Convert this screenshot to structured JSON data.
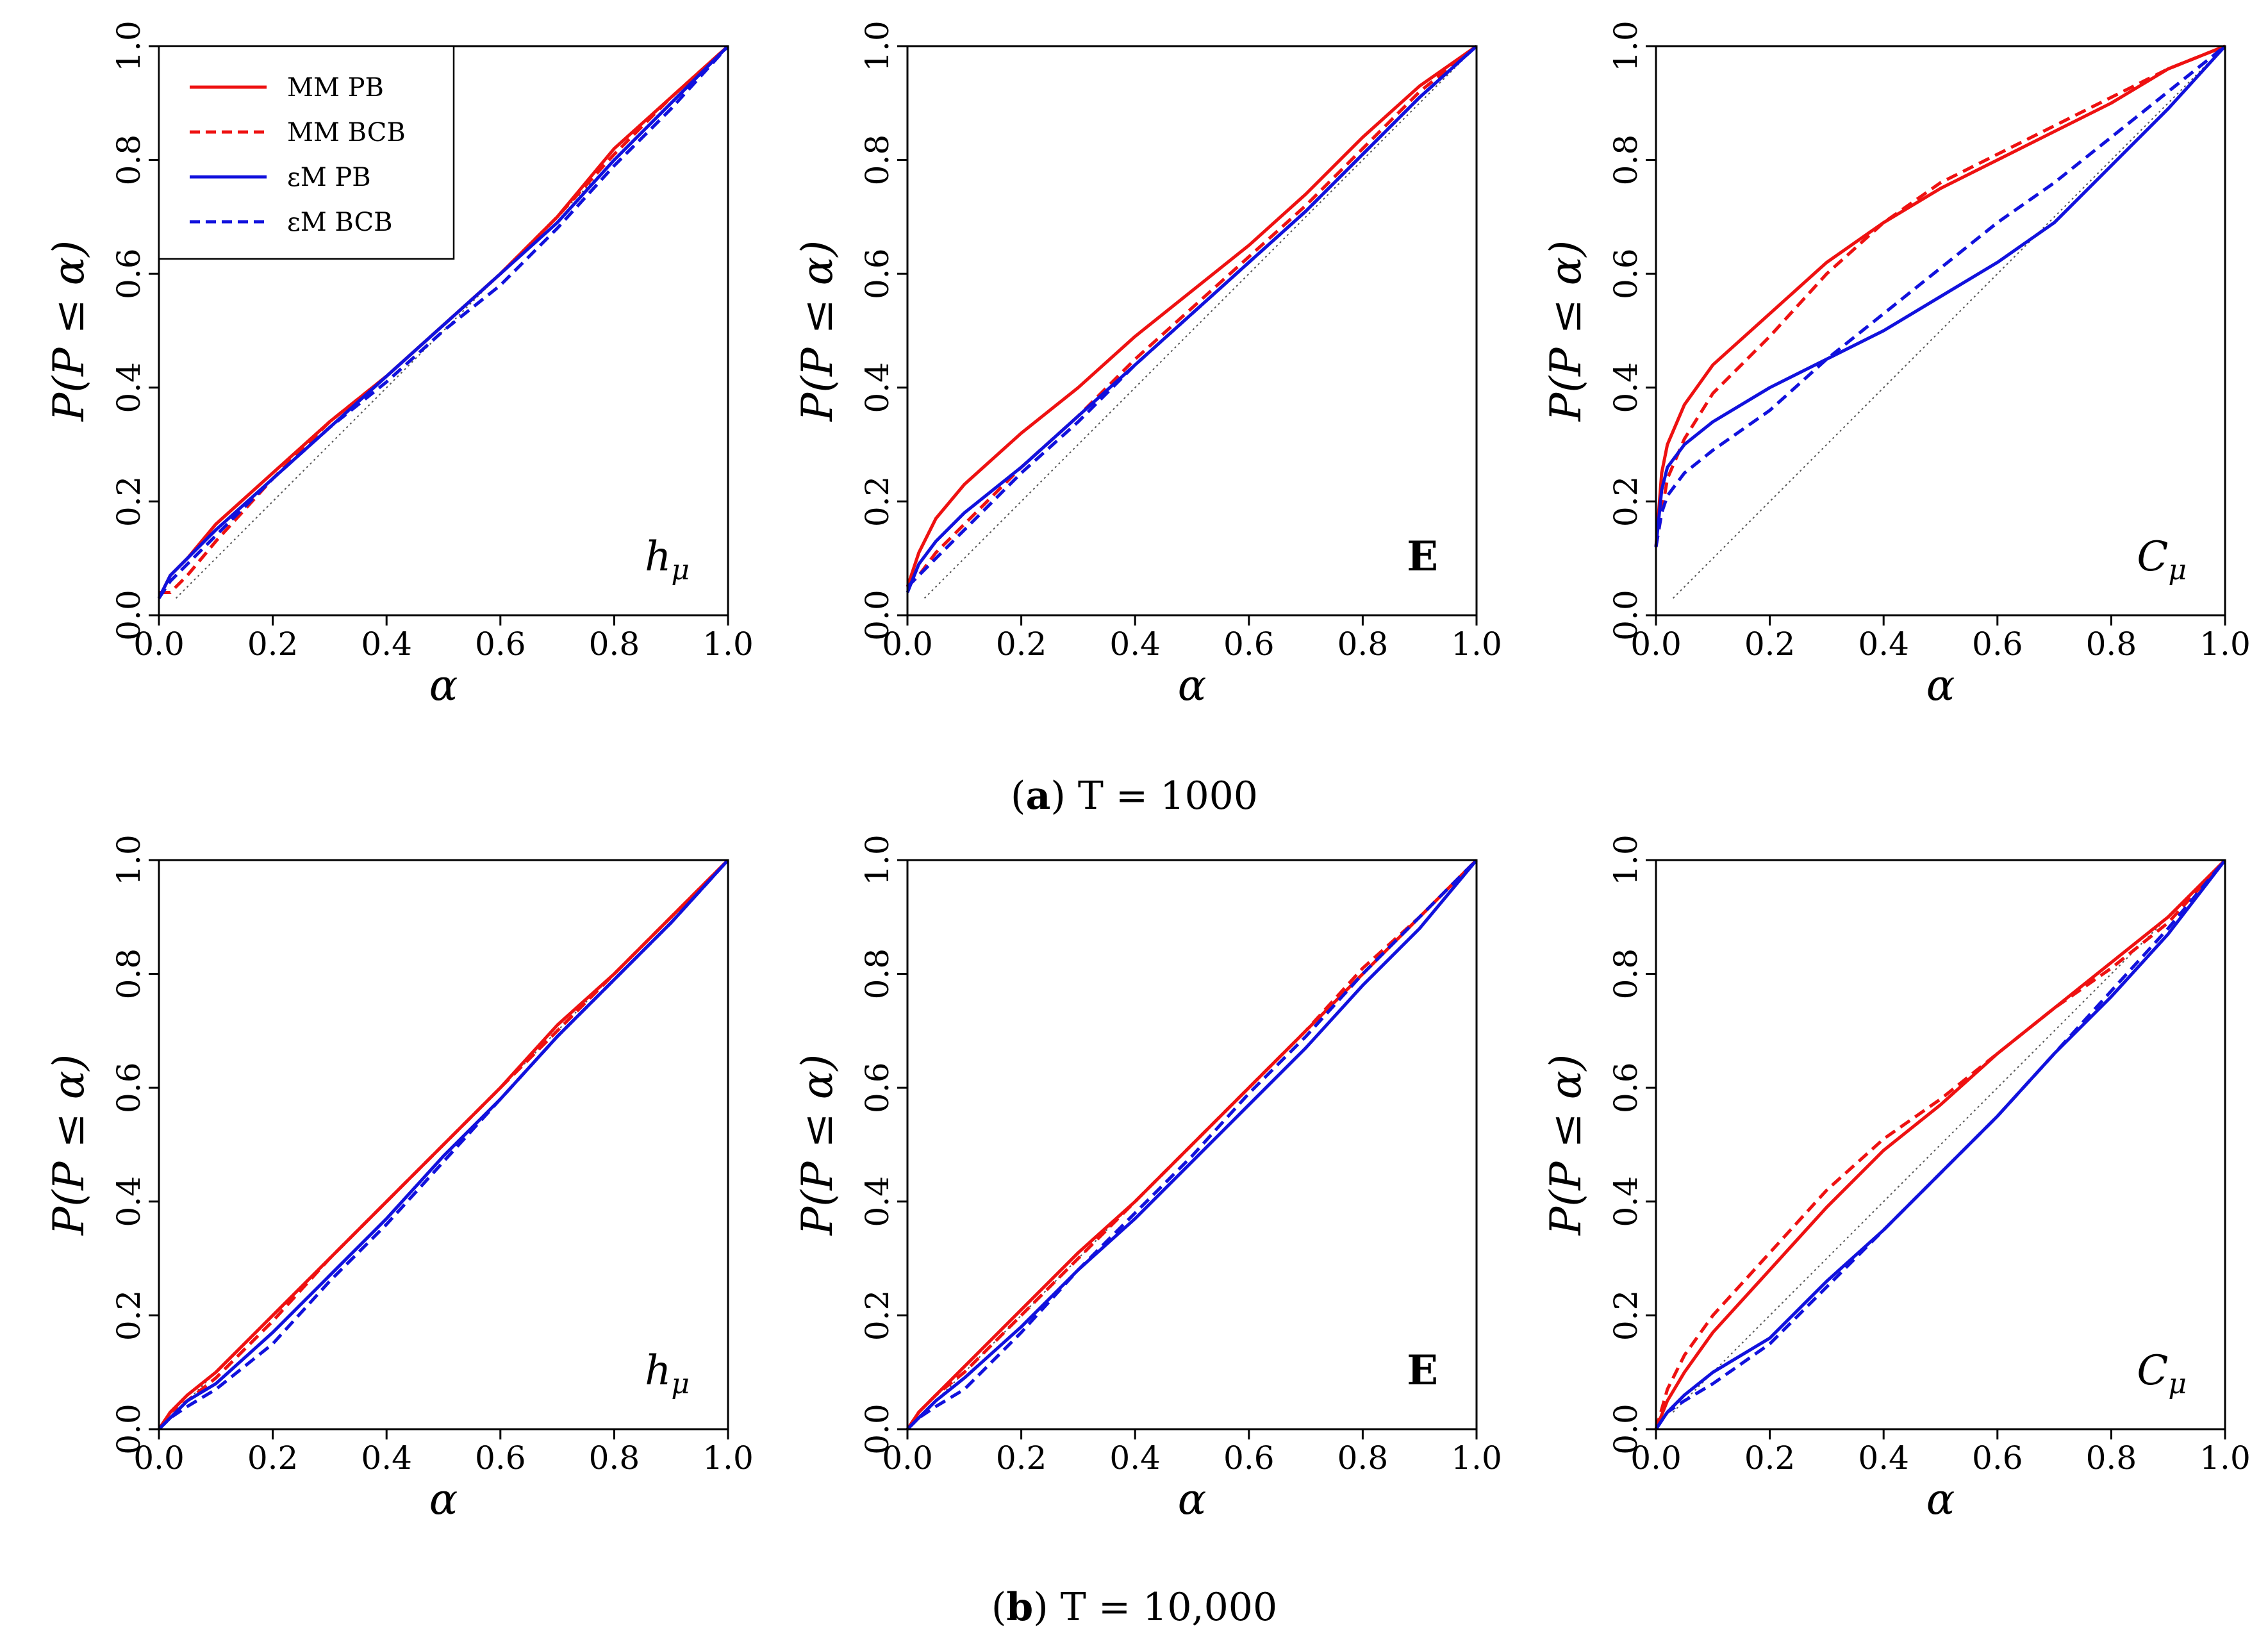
{
  "figure": {
    "captions": [
      {
        "letter": "a",
        "text": "T = 1000"
      },
      {
        "letter": "b",
        "text": "T = 10,000"
      }
    ]
  },
  "legend": {
    "entries": [
      {
        "label": "MM PB",
        "color": "#ee1111",
        "dash": "solid"
      },
      {
        "label": "MM BCB",
        "color": "#ee1111",
        "dash": "dashed"
      },
      {
        "label": "εM PB",
        "color": "#1111dd",
        "dash": "solid"
      },
      {
        "label": "εM BCB",
        "color": "#1111dd",
        "dash": "dashed"
      }
    ]
  },
  "chart_data": [
    {
      "type": "line",
      "row": "a",
      "panel_label": "h_μ",
      "xlabel": "α",
      "ylabel": "P(P ≤ α)",
      "xlim": [
        0,
        1
      ],
      "ylim": [
        0,
        1
      ],
      "xticks": [
        "0.0",
        "0.2",
        "0.4",
        "0.6",
        "0.8",
        "1.0"
      ],
      "yticks": [
        "0.0",
        "0.2",
        "0.4",
        "0.6",
        "0.8",
        "1.0"
      ],
      "x": [
        0.0,
        0.02,
        0.05,
        0.1,
        0.2,
        0.3,
        0.4,
        0.5,
        0.6,
        0.7,
        0.8,
        0.9,
        1.0
      ],
      "series": [
        {
          "name": "MM PB",
          "values": [
            0.03,
            0.07,
            0.1,
            0.16,
            0.25,
            0.34,
            0.42,
            0.51,
            0.6,
            0.7,
            0.82,
            0.91,
            1.0
          ]
        },
        {
          "name": "MM BCB",
          "values": [
            0.04,
            0.04,
            0.07,
            0.13,
            0.24,
            0.34,
            0.42,
            0.51,
            0.6,
            0.7,
            0.81,
            0.91,
            1.0
          ]
        },
        {
          "name": "εM PB",
          "values": [
            0.03,
            0.07,
            0.1,
            0.15,
            0.24,
            0.33,
            0.42,
            0.51,
            0.6,
            0.69,
            0.8,
            0.9,
            1.0
          ]
        },
        {
          "name": "εM BCB",
          "values": [
            0.03,
            0.06,
            0.09,
            0.14,
            0.24,
            0.33,
            0.41,
            0.5,
            0.58,
            0.68,
            0.79,
            0.89,
            1.0
          ]
        }
      ]
    },
    {
      "type": "line",
      "row": "a",
      "panel_label": "E",
      "xlabel": "α",
      "ylabel": "P(P ≤ α)",
      "xlim": [
        0,
        1
      ],
      "ylim": [
        0,
        1
      ],
      "xticks": [
        "0.0",
        "0.2",
        "0.4",
        "0.6",
        "0.8",
        "1.0"
      ],
      "yticks": [
        "0.0",
        "0.2",
        "0.4",
        "0.6",
        "0.8",
        "1.0"
      ],
      "x": [
        0.0,
        0.02,
        0.05,
        0.1,
        0.2,
        0.3,
        0.4,
        0.5,
        0.6,
        0.7,
        0.8,
        0.9,
        1.0
      ],
      "series": [
        {
          "name": "MM PB",
          "values": [
            0.05,
            0.11,
            0.17,
            0.23,
            0.32,
            0.4,
            0.49,
            0.57,
            0.65,
            0.74,
            0.84,
            0.93,
            1.0
          ]
        },
        {
          "name": "MM BCB",
          "values": [
            0.05,
            0.07,
            0.11,
            0.16,
            0.26,
            0.35,
            0.45,
            0.54,
            0.63,
            0.72,
            0.82,
            0.92,
            1.0
          ]
        },
        {
          "name": "εM PB",
          "values": [
            0.04,
            0.09,
            0.13,
            0.18,
            0.26,
            0.35,
            0.44,
            0.53,
            0.62,
            0.71,
            0.81,
            0.91,
            1.0
          ]
        },
        {
          "name": "εM BCB",
          "values": [
            0.05,
            0.07,
            0.1,
            0.15,
            0.25,
            0.34,
            0.44,
            0.53,
            0.62,
            0.71,
            0.81,
            0.91,
            1.0
          ]
        }
      ]
    },
    {
      "type": "line",
      "row": "a",
      "panel_label": "C_μ",
      "xlabel": "α",
      "ylabel": "P(P ≤ α)",
      "xlim": [
        0,
        1
      ],
      "ylim": [
        0,
        1
      ],
      "xticks": [
        "0.0",
        "0.2",
        "0.4",
        "0.6",
        "0.8",
        "1.0"
      ],
      "yticks": [
        "0.0",
        "0.2",
        "0.4",
        "0.6",
        "0.8",
        "1.0"
      ],
      "x": [
        0.0,
        0.01,
        0.02,
        0.05,
        0.1,
        0.2,
        0.3,
        0.4,
        0.5,
        0.6,
        0.7,
        0.8,
        0.9,
        1.0
      ],
      "series": [
        {
          "name": "MM PB",
          "values": [
            0.12,
            0.25,
            0.3,
            0.37,
            0.44,
            0.53,
            0.62,
            0.69,
            0.75,
            0.8,
            0.85,
            0.9,
            0.96,
            1.0
          ]
        },
        {
          "name": "MM BCB",
          "values": [
            0.12,
            0.18,
            0.24,
            0.31,
            0.39,
            0.49,
            0.6,
            0.69,
            0.76,
            0.81,
            0.86,
            0.91,
            0.96,
            1.0
          ]
        },
        {
          "name": "εM PB",
          "values": [
            0.12,
            0.22,
            0.26,
            0.3,
            0.34,
            0.4,
            0.45,
            0.5,
            0.56,
            0.62,
            0.69,
            0.79,
            0.89,
            1.0
          ]
        },
        {
          "name": "εM BCB",
          "values": [
            0.12,
            0.18,
            0.21,
            0.25,
            0.29,
            0.36,
            0.45,
            0.53,
            0.61,
            0.69,
            0.76,
            0.84,
            0.92,
            1.0
          ]
        }
      ]
    },
    {
      "type": "line",
      "row": "b",
      "panel_label": "h_μ",
      "xlabel": "α",
      "ylabel": "P(P ≤ α)",
      "xlim": [
        0,
        1
      ],
      "ylim": [
        0,
        1
      ],
      "xticks": [
        "0.0",
        "0.2",
        "0.4",
        "0.6",
        "0.8",
        "1.0"
      ],
      "yticks": [
        "0.0",
        "0.2",
        "0.4",
        "0.6",
        "0.8",
        "1.0"
      ],
      "x": [
        0.0,
        0.02,
        0.05,
        0.1,
        0.2,
        0.3,
        0.4,
        0.5,
        0.6,
        0.7,
        0.8,
        0.9,
        1.0
      ],
      "series": [
        {
          "name": "MM PB",
          "values": [
            0.0,
            0.03,
            0.06,
            0.1,
            0.2,
            0.3,
            0.4,
            0.5,
            0.6,
            0.71,
            0.8,
            0.9,
            1.0
          ]
        },
        {
          "name": "MM BCB",
          "values": [
            0.0,
            0.03,
            0.05,
            0.09,
            0.19,
            0.3,
            0.4,
            0.5,
            0.6,
            0.7,
            0.8,
            0.9,
            1.0
          ]
        },
        {
          "name": "εM PB",
          "values": [
            0.0,
            0.02,
            0.05,
            0.08,
            0.17,
            0.27,
            0.37,
            0.48,
            0.58,
            0.69,
            0.79,
            0.89,
            1.0
          ]
        },
        {
          "name": "εM BCB",
          "values": [
            0.0,
            0.02,
            0.04,
            0.07,
            0.15,
            0.26,
            0.36,
            0.47,
            0.58,
            0.69,
            0.79,
            0.89,
            1.0
          ]
        }
      ]
    },
    {
      "type": "line",
      "row": "b",
      "panel_label": "E",
      "xlabel": "α",
      "ylabel": "P(P ≤ α)",
      "xlim": [
        0,
        1
      ],
      "ylim": [
        0,
        1
      ],
      "xticks": [
        "0.0",
        "0.2",
        "0.4",
        "0.6",
        "0.8",
        "1.0"
      ],
      "yticks": [
        "0.0",
        "0.2",
        "0.4",
        "0.6",
        "0.8",
        "1.0"
      ],
      "x": [
        0.0,
        0.02,
        0.05,
        0.1,
        0.2,
        0.3,
        0.4,
        0.5,
        0.6,
        0.7,
        0.8,
        0.9,
        1.0
      ],
      "series": [
        {
          "name": "MM PB",
          "values": [
            0.0,
            0.03,
            0.06,
            0.11,
            0.21,
            0.31,
            0.4,
            0.5,
            0.6,
            0.7,
            0.8,
            0.9,
            1.0
          ]
        },
        {
          "name": "MM BCB",
          "values": [
            0.0,
            0.03,
            0.06,
            0.1,
            0.2,
            0.3,
            0.4,
            0.5,
            0.6,
            0.7,
            0.81,
            0.9,
            1.0
          ]
        },
        {
          "name": "εM PB",
          "values": [
            0.0,
            0.02,
            0.05,
            0.09,
            0.18,
            0.28,
            0.37,
            0.47,
            0.57,
            0.67,
            0.78,
            0.88,
            1.0
          ]
        },
        {
          "name": "εM BCB",
          "values": [
            0.0,
            0.02,
            0.04,
            0.07,
            0.17,
            0.28,
            0.38,
            0.48,
            0.59,
            0.69,
            0.8,
            0.9,
            1.0
          ]
        }
      ]
    },
    {
      "type": "line",
      "row": "b",
      "panel_label": "C_μ",
      "xlabel": "α",
      "ylabel": "P(P ≤ α)",
      "xlim": [
        0,
        1
      ],
      "ylim": [
        0,
        1
      ],
      "xticks": [
        "0.0",
        "0.2",
        "0.4",
        "0.6",
        "0.8",
        "1.0"
      ],
      "yticks": [
        "0.0",
        "0.2",
        "0.4",
        "0.6",
        "0.8",
        "1.0"
      ],
      "x": [
        0.0,
        0.02,
        0.05,
        0.1,
        0.2,
        0.3,
        0.4,
        0.5,
        0.6,
        0.7,
        0.8,
        0.9,
        1.0
      ],
      "series": [
        {
          "name": "MM PB",
          "values": [
            0.0,
            0.05,
            0.1,
            0.17,
            0.28,
            0.39,
            0.49,
            0.57,
            0.66,
            0.74,
            0.82,
            0.9,
            1.0
          ]
        },
        {
          "name": "MM BCB",
          "values": [
            0.0,
            0.07,
            0.13,
            0.2,
            0.31,
            0.42,
            0.51,
            0.58,
            0.66,
            0.74,
            0.81,
            0.89,
            1.0
          ]
        },
        {
          "name": "εM PB",
          "values": [
            0.0,
            0.03,
            0.06,
            0.1,
            0.16,
            0.26,
            0.35,
            0.45,
            0.55,
            0.66,
            0.76,
            0.87,
            1.0
          ]
        },
        {
          "name": "εM BCB",
          "values": [
            0.0,
            0.03,
            0.05,
            0.08,
            0.15,
            0.25,
            0.35,
            0.45,
            0.55,
            0.66,
            0.77,
            0.88,
            1.0
          ]
        }
      ]
    }
  ]
}
